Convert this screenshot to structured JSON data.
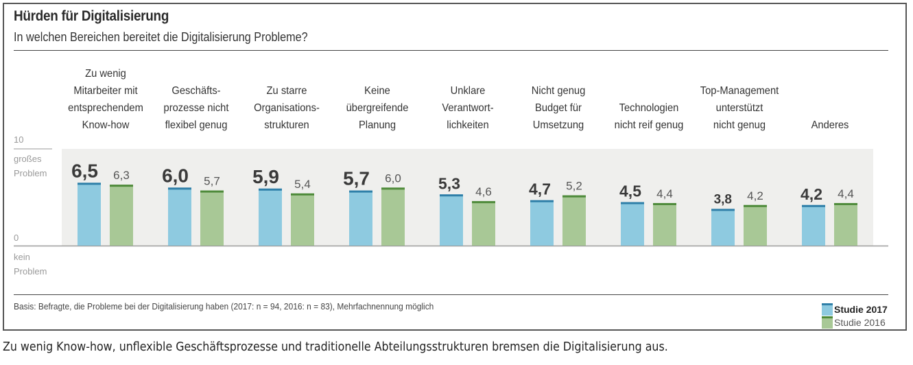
{
  "header": {
    "title": "Hürden für Digitalisierung",
    "subtitle": "In welchen Bereichen bereitet die Digitalisierung Probleme?"
  },
  "axis": {
    "top_value": "10",
    "top_label_line1": "großes",
    "top_label_line2": "Problem",
    "bottom_value": "0",
    "bottom_label_line1": "kein",
    "bottom_label_line2": "Problem"
  },
  "chart_data": {
    "type": "bar",
    "title": "Hürden für Digitalisierung",
    "subtitle": "In welchen Bereichen bereitet die Digitalisierung Probleme?",
    "xlabel": "",
    "ylabel": "",
    "ylim": [
      0,
      10
    ],
    "grid": false,
    "legend_position": "bottom-right",
    "categories": [
      [
        "Zu wenig",
        "Mitarbeiter mit",
        "entsprechendem",
        "Know-how"
      ],
      [
        "Geschäfts-",
        "prozesse nicht",
        "flexibel genug"
      ],
      [
        "Zu starre",
        "Organisations-",
        "strukturen"
      ],
      [
        "Keine",
        "übergreifende",
        "Planung"
      ],
      [
        "Unklare",
        "Verantwort-",
        "lichkeiten"
      ],
      [
        "Nicht genug",
        "Budget für",
        "Umsetzung"
      ],
      [
        "Technologien",
        "nicht reif genug"
      ],
      [
        "Top-Management",
        "unterstützt",
        "nicht genug"
      ],
      [
        "Anderes"
      ]
    ],
    "series": [
      {
        "name": "Studie 2017",
        "color": "#8ecae0",
        "cap_color": "#2f7fa8",
        "values": [
          6.5,
          6.0,
          5.9,
          5.7,
          5.3,
          4.7,
          4.5,
          3.8,
          4.2
        ],
        "labels": [
          "6,5",
          "6,0",
          "5,9",
          "5,7",
          "5,3",
          "4,7",
          "4,5",
          "3,8",
          "4,2"
        ]
      },
      {
        "name": "Studie 2016",
        "color": "#a8c896",
        "cap_color": "#4e8a3a",
        "values": [
          6.3,
          5.7,
          5.4,
          6.0,
          4.6,
          5.2,
          4.4,
          4.2,
          4.4
        ],
        "labels": [
          "6,3",
          "5,7",
          "5,4",
          "6,0",
          "4,6",
          "5,2",
          "4,4",
          "4,2",
          "4,4"
        ]
      }
    ]
  },
  "footnote": "Basis: Befragte, die Probleme bei der Digitalisierung haben (2017: n = 94, 2016: n = 83), Mehrfachnennung möglich",
  "legend": {
    "item_2017": "Studie 2017",
    "item_2016": "Studie 2016"
  },
  "caption": "Zu wenig Know-how, unflexible Geschäftsprozesse und traditionelle Abteilungsstrukturen bremsen die Digitalisierung aus."
}
